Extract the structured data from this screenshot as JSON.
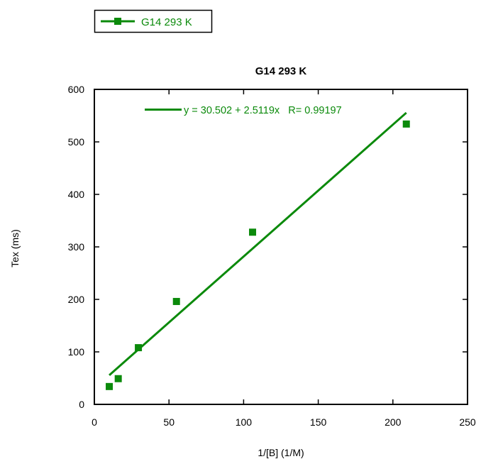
{
  "chart_data": {
    "type": "scatter",
    "title": "G14 293 K",
    "xlabel": "1/[B] (1/M)",
    "ylabel": "Tex (ms)",
    "xlim": [
      0,
      250
    ],
    "ylim": [
      0,
      600
    ],
    "x_ticks": [
      0,
      50,
      100,
      150,
      200,
      250
    ],
    "y_ticks": [
      0,
      100,
      200,
      300,
      400,
      500,
      600
    ],
    "grid": false,
    "legend_position": "top-left",
    "series": [
      {
        "name": "G14 293 K",
        "color": "#0b8a0b",
        "marker": "square",
        "x": [
          10,
          16,
          29.5,
          55,
          106,
          209
        ],
        "y": [
          34,
          49,
          108,
          196,
          328,
          534
        ]
      }
    ],
    "fit": {
      "intercept": 30.502,
      "slope": 2.5119,
      "x_range": [
        10,
        209
      ],
      "label": "y = 30.502 + 2.5119x   R= 0.99197",
      "color": "#0b8a0b"
    }
  }
}
